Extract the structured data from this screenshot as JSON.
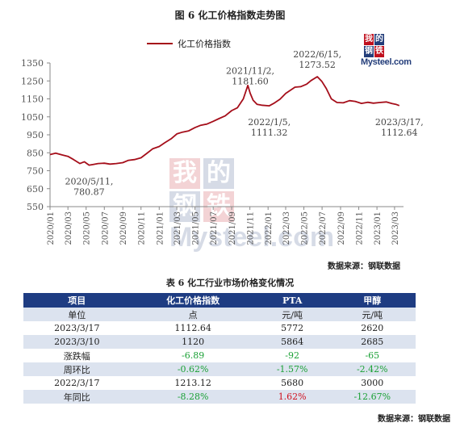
{
  "figure": {
    "title": "图 6 化工价格指数走势图",
    "legend": "化工价格指数",
    "source": "数据来源：钢联数据",
    "logo": {
      "chars": [
        "我",
        "的",
        "钢",
        "铁"
      ],
      "text": "Mysteel.com"
    },
    "colors": {
      "line": "#a50e1a",
      "brand_blue": "#233d7a",
      "brand_red": "#c0101e"
    }
  },
  "chart_data": {
    "type": "line",
    "title": "图 6 化工价格指数走势图",
    "xlabel": "",
    "ylabel": "",
    "ylim": [
      550,
      1350
    ],
    "yticks": [
      550,
      650,
      750,
      850,
      950,
      1050,
      1150,
      1250,
      1350
    ],
    "xticks": [
      "2020/01",
      "2020/03",
      "2020/05",
      "2020/07",
      "2020/09",
      "2020/11",
      "2021/01",
      "2021/03",
      "2021/05",
      "2021/07",
      "2021/09",
      "2021/11",
      "2022/01",
      "2022/03",
      "2022/05",
      "2022/07",
      "2022/09",
      "2022/11",
      "2023/01",
      "2023/03"
    ],
    "grid": false,
    "legend_position": "top-left",
    "series": [
      {
        "name": "化工价格指数",
        "points": [
          [
            "2020-01-01",
            840
          ],
          [
            "2020-01-20",
            848
          ],
          [
            "2020-02-10",
            838
          ],
          [
            "2020-03-01",
            830
          ],
          [
            "2020-03-20",
            812
          ],
          [
            "2020-04-10",
            790
          ],
          [
            "2020-04-25",
            800
          ],
          [
            "2020-05-11",
            780.87
          ],
          [
            "2020-05-25",
            785
          ],
          [
            "2020-06-10",
            790
          ],
          [
            "2020-07-01",
            792
          ],
          [
            "2020-07-20",
            787
          ],
          [
            "2020-08-10",
            790
          ],
          [
            "2020-09-01",
            795
          ],
          [
            "2020-09-20",
            808
          ],
          [
            "2020-10-10",
            812
          ],
          [
            "2020-11-01",
            822
          ],
          [
            "2020-11-20",
            846
          ],
          [
            "2020-12-10",
            872
          ],
          [
            "2021-01-01",
            885
          ],
          [
            "2021-01-20",
            906
          ],
          [
            "2021-02-10",
            928
          ],
          [
            "2021-03-01",
            955
          ],
          [
            "2021-03-20",
            965
          ],
          [
            "2021-04-10",
            972
          ],
          [
            "2021-05-01",
            990
          ],
          [
            "2021-05-20",
            1003
          ],
          [
            "2021-06-10",
            1010
          ],
          [
            "2021-07-01",
            1025
          ],
          [
            "2021-07-20",
            1040
          ],
          [
            "2021-08-10",
            1055
          ],
          [
            "2021-09-01",
            1085
          ],
          [
            "2021-09-20",
            1100
          ],
          [
            "2021-10-10",
            1150
          ],
          [
            "2021-10-25",
            1225
          ],
          [
            "2021-11-02",
            1181.6
          ],
          [
            "2021-11-12",
            1142
          ],
          [
            "2021-11-25",
            1120
          ],
          [
            "2021-12-10",
            1115
          ],
          [
            "2022-01-05",
            1111.32
          ],
          [
            "2022-01-20",
            1125
          ],
          [
            "2022-02-10",
            1148
          ],
          [
            "2022-03-01",
            1180
          ],
          [
            "2022-03-15",
            1196
          ],
          [
            "2022-04-01",
            1215
          ],
          [
            "2022-04-20",
            1218
          ],
          [
            "2022-05-10",
            1232
          ],
          [
            "2022-05-25",
            1252
          ],
          [
            "2022-06-15",
            1273.52
          ],
          [
            "2022-06-30",
            1248
          ],
          [
            "2022-07-15",
            1208
          ],
          [
            "2022-08-01",
            1150
          ],
          [
            "2022-08-20",
            1130
          ],
          [
            "2022-09-10",
            1128
          ],
          [
            "2022-10-01",
            1140
          ],
          [
            "2022-10-20",
            1136
          ],
          [
            "2022-11-10",
            1125
          ],
          [
            "2022-12-01",
            1131
          ],
          [
            "2022-12-20",
            1126
          ],
          [
            "2023-01-10",
            1130
          ],
          [
            "2023-02-01",
            1133
          ],
          [
            "2023-02-20",
            1124
          ],
          [
            "2023-03-05",
            1120
          ],
          [
            "2023-03-17",
            1112.64
          ]
        ]
      }
    ],
    "annotations": [
      {
        "date": "2020-05-11",
        "lines": [
          "2020/5/11,",
          "780.87"
        ],
        "anchor": "below"
      },
      {
        "date": "2021-11-02",
        "lines": [
          "2021/11/2,",
          "1181.60"
        ],
        "anchor": "above"
      },
      {
        "date": "2022-01-05",
        "lines": [
          "2022/1/5,",
          "1111.32"
        ],
        "anchor": "below"
      },
      {
        "date": "2022-06-15",
        "lines": [
          "2022/6/15,",
          "1273.52"
        ],
        "anchor": "above"
      },
      {
        "date": "2023-03-17",
        "lines": [
          "2023/3/17,",
          "1112.64"
        ],
        "anchor": "below"
      }
    ]
  },
  "table": {
    "title": "表 6 化工行业市场价格变化情况",
    "headers": [
      "项目",
      "化工价格指数",
      "PTA",
      "甲醇"
    ],
    "rows": [
      [
        "单位",
        "点",
        "元/吨",
        "元/吨"
      ],
      [
        "2023/3/17",
        "1112.64",
        "5772",
        "2620"
      ],
      [
        "2023/3/10",
        "1120",
        "5864",
        "2685"
      ],
      [
        "涨跌幅",
        "-6.89",
        "-92",
        "-65"
      ],
      [
        "周环比",
        "-0.62%",
        "-1.57%",
        "-2.42%"
      ],
      [
        "2022/3/17",
        "1213.12",
        "5680",
        "3000"
      ],
      [
        "年同比",
        "-8.28%",
        "1.62%",
        "-12.67%"
      ]
    ],
    "source": "数据来源：钢联数据"
  }
}
